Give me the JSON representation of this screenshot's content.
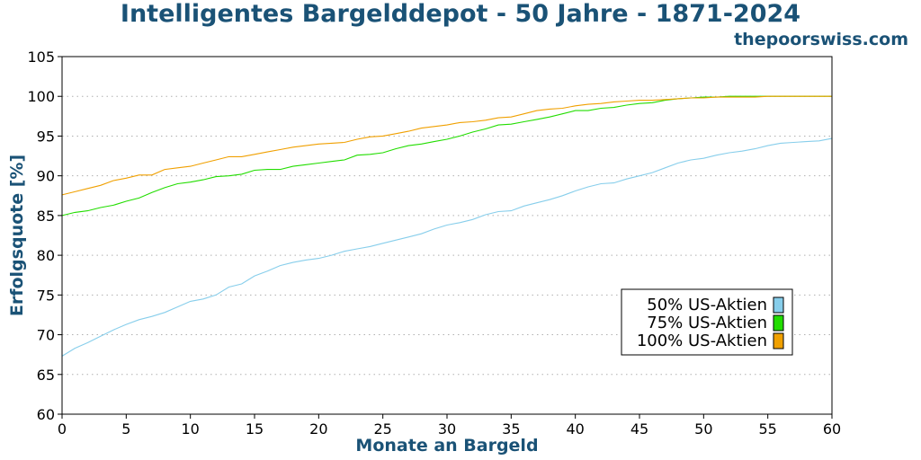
{
  "header": {
    "title": "Intelligentes Bargelddepot - 50 Jahre - 1871-2024",
    "site": "thepoorswiss.com"
  },
  "chart_data": {
    "type": "line",
    "title": "Intelligentes Bargelddepot - 50 Jahre - 1871-2024",
    "xlabel": "Monate an Bargeld",
    "ylabel": "Erfolgsquote [%]",
    "xlim": [
      0,
      60
    ],
    "ylim": [
      60,
      105
    ],
    "xticks": [
      "0",
      "5",
      "10",
      "15",
      "20",
      "25",
      "30",
      "35",
      "40",
      "45",
      "50",
      "55",
      "60"
    ],
    "yticks": [
      "60",
      "65",
      "70",
      "75",
      "80",
      "85",
      "90",
      "95",
      "100",
      "105"
    ],
    "grid": "horizontal-dotted",
    "legend_position": "lower-right",
    "x": [
      0,
      1,
      2,
      3,
      4,
      5,
      6,
      7,
      8,
      9,
      10,
      11,
      12,
      13,
      14,
      15,
      16,
      17,
      18,
      19,
      20,
      21,
      22,
      23,
      24,
      25,
      26,
      27,
      28,
      29,
      30,
      31,
      32,
      33,
      34,
      35,
      36,
      37,
      38,
      39,
      40,
      41,
      42,
      43,
      44,
      45,
      46,
      47,
      48,
      49,
      50,
      51,
      52,
      53,
      54,
      55,
      56,
      57,
      58,
      59,
      60
    ],
    "series": [
      {
        "name": "50% US-Aktien",
        "color": "#87CEEB",
        "values": [
          67.3,
          68.3,
          69.0,
          69.8,
          70.6,
          71.3,
          71.9,
          72.3,
          72.8,
          73.5,
          74.2,
          74.5,
          75.0,
          76.0,
          76.4,
          77.4,
          78.0,
          78.7,
          79.1,
          79.4,
          79.6,
          80.0,
          80.5,
          80.8,
          81.1,
          81.5,
          81.9,
          82.3,
          82.7,
          83.3,
          83.8,
          84.1,
          84.5,
          85.1,
          85.5,
          85.6,
          86.2,
          86.6,
          87.0,
          87.5,
          88.1,
          88.6,
          89.0,
          89.1,
          89.6,
          90.0,
          90.4,
          91.0,
          91.6,
          92.0,
          92.2,
          92.6,
          92.9,
          93.1,
          93.4,
          93.8,
          94.1,
          94.2,
          94.3,
          94.4,
          94.7
        ]
      },
      {
        "name": "75% US-Aktien",
        "color": "#22dd00",
        "values": [
          85.0,
          85.4,
          85.6,
          86.0,
          86.3,
          86.8,
          87.2,
          87.9,
          88.5,
          89.0,
          89.2,
          89.5,
          89.9,
          90.0,
          90.2,
          90.7,
          90.8,
          90.8,
          91.2,
          91.4,
          91.6,
          91.8,
          92.0,
          92.6,
          92.7,
          92.9,
          93.4,
          93.8,
          94.0,
          94.3,
          94.6,
          95.0,
          95.5,
          95.9,
          96.4,
          96.5,
          96.8,
          97.1,
          97.4,
          97.8,
          98.2,
          98.2,
          98.5,
          98.6,
          98.9,
          99.1,
          99.2,
          99.5,
          99.7,
          99.8,
          99.9,
          99.9,
          100.0,
          100.0,
          100.0,
          100.0,
          100.0,
          100.0,
          100.0,
          100.0,
          100.0
        ]
      },
      {
        "name": "100% US-Aktien",
        "color": "#f0a000",
        "values": [
          87.6,
          88.0,
          88.4,
          88.8,
          89.4,
          89.7,
          90.1,
          90.1,
          90.8,
          91.0,
          91.2,
          91.6,
          92.0,
          92.4,
          92.4,
          92.7,
          93.0,
          93.3,
          93.6,
          93.8,
          94.0,
          94.1,
          94.2,
          94.6,
          94.9,
          95.0,
          95.3,
          95.6,
          96.0,
          96.2,
          96.4,
          96.7,
          96.8,
          97.0,
          97.3,
          97.4,
          97.8,
          98.2,
          98.4,
          98.5,
          98.8,
          99.0,
          99.1,
          99.3,
          99.4,
          99.5,
          99.5,
          99.6,
          99.7,
          99.8,
          99.8,
          99.9,
          99.9,
          99.9,
          99.9,
          100.0,
          100.0,
          100.0,
          100.0,
          100.0,
          100.0
        ]
      }
    ]
  }
}
